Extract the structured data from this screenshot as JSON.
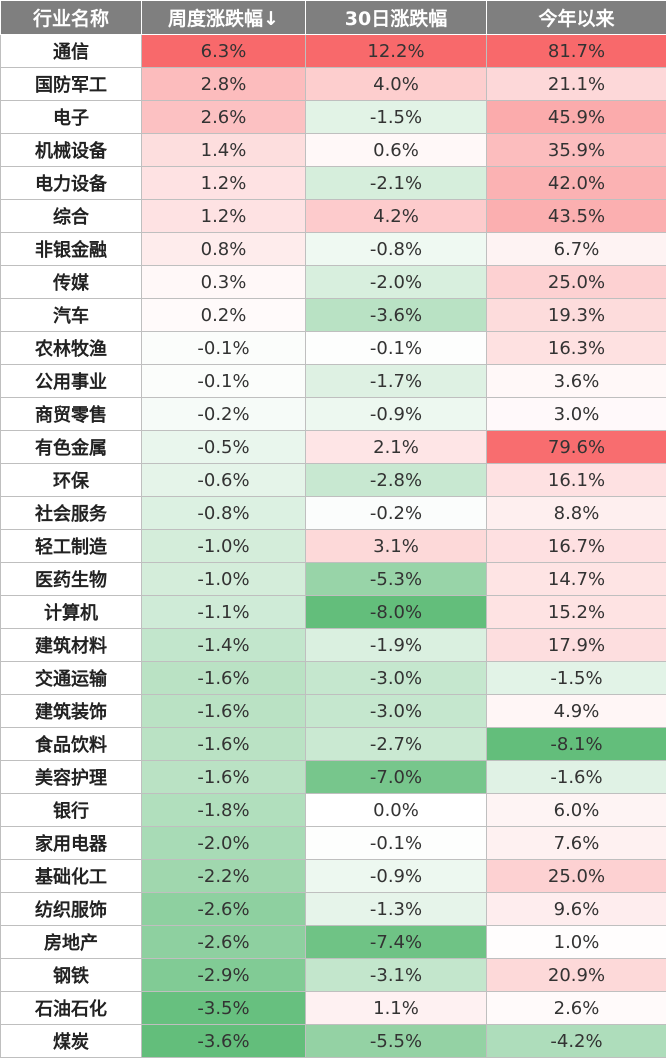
{
  "chart_data": {
    "type": "table",
    "columns": [
      "行业名称",
      "周度涨跌幅↓",
      "30日涨跌幅",
      "今年以来"
    ],
    "rows": [
      {
        "name": "通信",
        "week": "6.3%",
        "d30": "12.2%",
        "ytd": "81.7%"
      },
      {
        "name": "国防军工",
        "week": "2.8%",
        "d30": "4.0%",
        "ytd": "21.1%"
      },
      {
        "name": "电子",
        "week": "2.6%",
        "d30": "-1.5%",
        "ytd": "45.9%"
      },
      {
        "name": "机械设备",
        "week": "1.4%",
        "d30": "0.6%",
        "ytd": "35.9%"
      },
      {
        "name": "电力设备",
        "week": "1.2%",
        "d30": "-2.1%",
        "ytd": "42.0%"
      },
      {
        "name": "综合",
        "week": "1.2%",
        "d30": "4.2%",
        "ytd": "43.5%"
      },
      {
        "name": "非银金融",
        "week": "0.8%",
        "d30": "-0.8%",
        "ytd": "6.7%"
      },
      {
        "name": "传媒",
        "week": "0.3%",
        "d30": "-2.0%",
        "ytd": "25.0%"
      },
      {
        "name": "汽车",
        "week": "0.2%",
        "d30": "-3.6%",
        "ytd": "19.3%"
      },
      {
        "name": "农林牧渔",
        "week": "-0.1%",
        "d30": "-0.1%",
        "ytd": "16.3%"
      },
      {
        "name": "公用事业",
        "week": "-0.1%",
        "d30": "-1.7%",
        "ytd": "3.6%"
      },
      {
        "name": "商贸零售",
        "week": "-0.2%",
        "d30": "-0.9%",
        "ytd": "3.0%"
      },
      {
        "name": "有色金属",
        "week": "-0.5%",
        "d30": "2.1%",
        "ytd": "79.6%"
      },
      {
        "name": "环保",
        "week": "-0.6%",
        "d30": "-2.8%",
        "ytd": "16.1%"
      },
      {
        "name": "社会服务",
        "week": "-0.8%",
        "d30": "-0.2%",
        "ytd": "8.8%"
      },
      {
        "name": "轻工制造",
        "week": "-1.0%",
        "d30": "3.1%",
        "ytd": "16.7%"
      },
      {
        "name": "医药生物",
        "week": "-1.0%",
        "d30": "-5.3%",
        "ytd": "14.7%"
      },
      {
        "name": "计算机",
        "week": "-1.1%",
        "d30": "-8.0%",
        "ytd": "15.2%"
      },
      {
        "name": "建筑材料",
        "week": "-1.4%",
        "d30": "-1.9%",
        "ytd": "17.9%"
      },
      {
        "name": "交通运输",
        "week": "-1.6%",
        "d30": "-3.0%",
        "ytd": "-1.5%"
      },
      {
        "name": "建筑装饰",
        "week": "-1.6%",
        "d30": "-3.0%",
        "ytd": "4.9%"
      },
      {
        "name": "食品饮料",
        "week": "-1.6%",
        "d30": "-2.7%",
        "ytd": "-8.1%"
      },
      {
        "name": "美容护理",
        "week": "-1.6%",
        "d30": "-7.0%",
        "ytd": "-1.6%"
      },
      {
        "name": "银行",
        "week": "-1.8%",
        "d30": "0.0%",
        "ytd": "6.0%"
      },
      {
        "name": "家用电器",
        "week": "-2.0%",
        "d30": "-0.1%",
        "ytd": "7.6%"
      },
      {
        "name": "基础化工",
        "week": "-2.2%",
        "d30": "-0.9%",
        "ytd": "25.0%"
      },
      {
        "name": "纺织服饰",
        "week": "-2.6%",
        "d30": "-1.3%",
        "ytd": "9.6%"
      },
      {
        "name": "房地产",
        "week": "-2.6%",
        "d30": "-7.4%",
        "ytd": "1.0%"
      },
      {
        "name": "钢铁",
        "week": "-2.9%",
        "d30": "-3.1%",
        "ytd": "20.9%"
      },
      {
        "name": "石油石化",
        "week": "-3.5%",
        "d30": "1.1%",
        "ytd": "2.6%"
      },
      {
        "name": "煤炭",
        "week": "-3.6%",
        "d30": "-5.5%",
        "ytd": "-4.2%"
      }
    ],
    "colors": {
      "header_bg": "#7f7f7f",
      "header_text": "#ffffff",
      "positive_max": "#f8696b",
      "negative_max": "#63be7b",
      "neutral": "#ffffff"
    }
  }
}
